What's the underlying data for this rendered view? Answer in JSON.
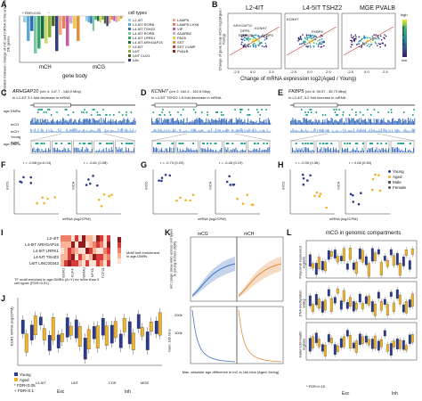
{
  "panels": [
    "A",
    "B",
    "C",
    "D",
    "E",
    "F",
    "G",
    "H",
    "I",
    "J",
    "K",
    "L"
  ],
  "colors": {
    "young": "#2b3a8c",
    "aged": "#f0b429",
    "cpg_blue": "#3f6fbf",
    "teal": "#2aa58c",
    "red": "#c0392b"
  },
  "A": {
    "ylabel": "Correlation between change of mC and mRNA of the union of age-DE genes",
    "fdr": "* FDR<0.01",
    "xlabels": [
      "mCH",
      "mCG"
    ],
    "xtitle": "gene body",
    "legend_title": "cell types",
    "legend_col1": [
      "L2-4IT",
      "L3-5IT RORB",
      "L4-5IT TSHZ2",
      "L4-5IT RORB",
      "L4-5IT LRRK1",
      "L4-5IT ARHGAP15",
      "L5-6IT",
      "L6IT",
      "L6IT CUX1",
      "L6b"
    ],
    "legend_col2": [
      "LAMP5",
      "LAMP5 LHX6",
      "VIP",
      "ADARB2",
      "PAX6",
      "SST",
      "SST CUMP",
      "PVALB"
    ]
  },
  "B": {
    "titles": [
      "L2-4IT",
      "L4-5IT TSHZ2",
      "MGE PVALB"
    ],
    "ylabel": "Change of gene body mCH log2(Aged / Young)",
    "xlabel": "Change of mRNA expression log2(Aged / Young)",
    "genes_p1": [
      "ARHGAP10",
      "DPP6",
      "NRXN2B",
      "KCNH7",
      "FKBP5"
    ],
    "genes_p2": [
      "KCNH7",
      "FKBP5"
    ],
    "cbar_title": "gene density",
    "cbar_high": "high",
    "cbar_low": "low",
    "ticks": [
      "-2.5",
      "0.0",
      "2.5"
    ]
  },
  "C": {
    "gene": "ARHGAP10",
    "loc": "(chr 4: 147.7 - 148.0 Mbp)",
    "desc": "In L2-4IT 3.2 fold decrease in mRNA",
    "tracks": [
      "age DMRs",
      "mCG",
      "mCH",
      "Young",
      "Aged"
    ]
  },
  "D": {
    "gene": "KCNH7",
    "loc": "(chr 2: 162.4 - 162.8 Mbp)",
    "desc": "In L4-5IT TSHZ2 1.8 fold decrease in mRNA"
  },
  "E": {
    "gene": "FKBP5",
    "loc": "(chr 6: 35.57 - 35.73 Mbp)",
    "desc": "In L2-4IT, 5.2 fold increase in mRNA"
  },
  "F": {
    "stats": [
      "r = -0.68 (p=0.04)",
      "r = -0.61 (0.08)"
    ],
    "ylabels": [
      "mCG",
      "mCH"
    ],
    "xlabel": "mRNA (log2CPM)"
  },
  "G": {
    "stats": [
      "r = -0.73 (0.03)",
      "r = -0.48 (0.19)"
    ],
    "xlabel": "mRNA (log2CPM)"
  },
  "H": {
    "stats": [
      "r = -0.35 (0.36)",
      "r = 0.08 (0.83)"
    ],
    "xlabel": "mRNA (log2CPM)",
    "legend": [
      "Young",
      "Aged",
      "Male",
      "Female"
    ]
  },
  "I": {
    "rows": [
      "L2-4IT",
      "L4-5IT ARHGAP15",
      "L4-5IT LRRK1",
      "L4-5IT TSHZ2",
      "L6IT LINC00343"
    ],
    "note": "TF motif enriched in age-DMRs (A>Y) for more than 3 cell types (FDR<0.01)",
    "cbar": "Motif fold enrichment in age-DMRs",
    "tfs": [
      "EGR1",
      "KLF4",
      "NR4A1",
      "NFYA",
      "TCF21"
    ]
  },
  "J": {
    "ylabel": "EGR1 mRNA (log2CPM)",
    "groups": [
      "Exc",
      "Inh"
    ],
    "subgroups": [
      "L4-5IT",
      "L6IT",
      "CGE",
      "MGE"
    ],
    "legend": [
      "Young",
      "Aged"
    ],
    "fdr": [
      "* FDR<0.05",
      "+ FDR<0.1"
    ]
  },
  "K": {
    "titles": [
      "mCG",
      "mCH"
    ],
    "ylabel_top": "mC range (max-min) across cell types in young donors (IQR)",
    "ylabel_bottom": "Num. 1kb bins",
    "xlabel": "Max. absolute age difference in mC in 1kb bins (Aged-Young)",
    "ticks_bottom": [
      "200k",
      "100k"
    ]
  },
  "L": {
    "title": "mCG in genomic compartments",
    "ylabels": [
      "Polycomb repressed regions",
      "DNA methylation valley",
      "Heterochromatin regions"
    ],
    "groups": [
      "Exc",
      "Inh"
    ],
    "fdr": "* FDR<0.15"
  }
}
